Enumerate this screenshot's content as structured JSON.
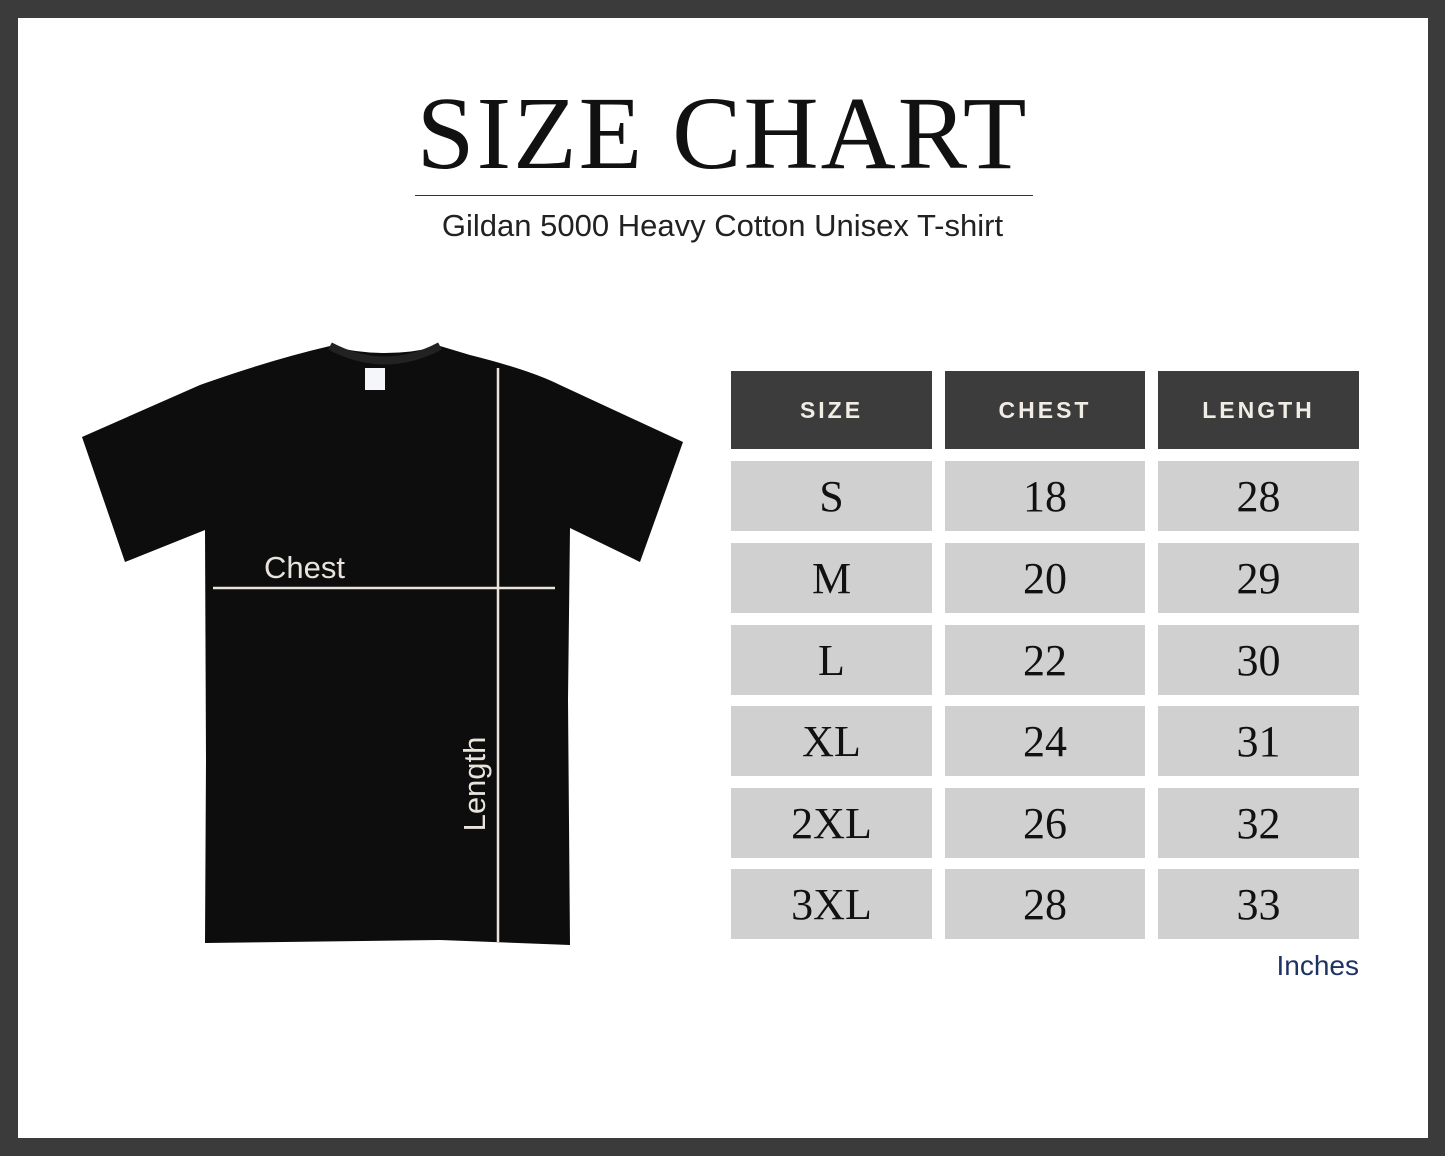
{
  "title": "SIZE CHART",
  "subtitle": "Gildan 5000 Heavy Cotton Unisex T-shirt",
  "diagram": {
    "chest_label": "Chest",
    "length_label": "Length",
    "shirt_color": "#0d0d0d"
  },
  "table": {
    "headers": [
      "SIZE",
      "CHEST",
      "LENGTH"
    ],
    "rows": [
      [
        "S",
        "18",
        "28"
      ],
      [
        "M",
        "20",
        "29"
      ],
      [
        "L",
        "22",
        "30"
      ],
      [
        "XL",
        "24",
        "31"
      ],
      [
        "2XL",
        "26",
        "32"
      ],
      [
        "3XL",
        "28",
        "33"
      ]
    ],
    "units": "Inches"
  },
  "colors": {
    "header_bg": "#3c3c3c",
    "cell_bg": "#d0d0d0",
    "units_text": "#1f3264",
    "frame": "#3b3b3b"
  }
}
